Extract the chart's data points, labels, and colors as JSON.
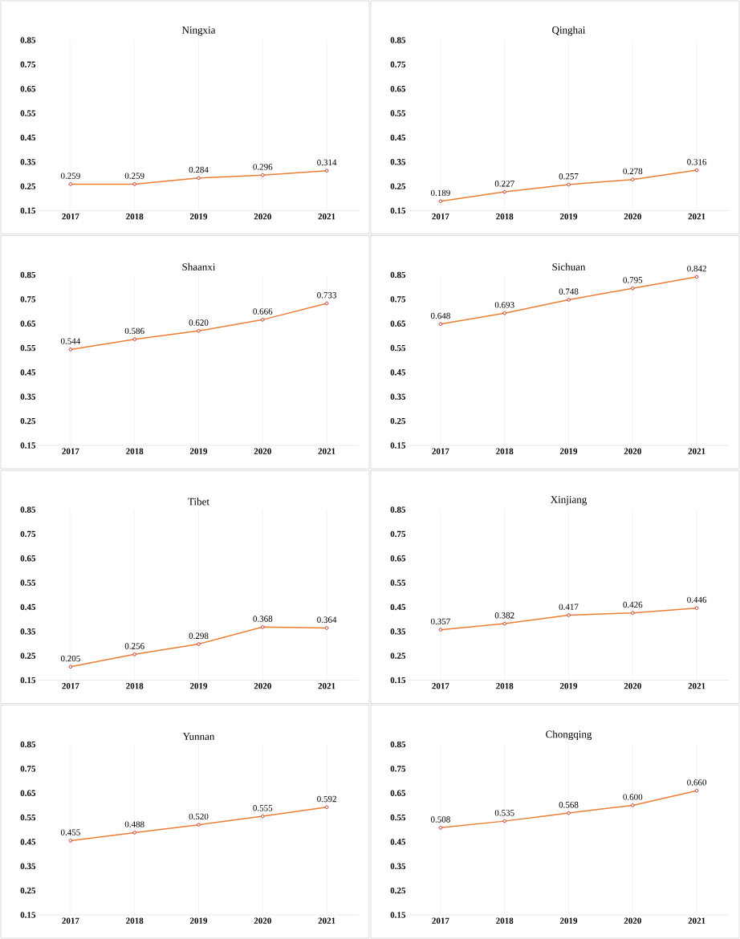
{
  "chart_data": [
    {
      "type": "line",
      "title": "Ningxia",
      "categories": [
        "2017",
        "2018",
        "2019",
        "2020",
        "2021"
      ],
      "values": [
        0.259,
        0.259,
        0.284,
        0.296,
        0.314
      ],
      "value_labels": [
        "0.259",
        "0.259",
        "0.284",
        "0.296",
        "0.314"
      ],
      "color": "#ed7d31",
      "ylim": [
        0.15,
        0.85
      ],
      "yticks": [
        0.15,
        0.25,
        0.35,
        0.45,
        0.55,
        0.65,
        0.75,
        0.85
      ],
      "grid": "x",
      "marker": "circle"
    },
    {
      "type": "line",
      "title": "Qinghai",
      "categories": [
        "2017",
        "2018",
        "2019",
        "2020",
        "2021"
      ],
      "values": [
        0.189,
        0.227,
        0.257,
        0.278,
        0.316
      ],
      "value_labels": [
        "0.189",
        "0.227",
        "0.257",
        "0.278",
        "0.316"
      ],
      "color": "#ed7d31",
      "ylim": [
        0.15,
        0.85
      ],
      "yticks": [
        0.15,
        0.25,
        0.35,
        0.45,
        0.55,
        0.65,
        0.75,
        0.85
      ],
      "grid": "x",
      "marker": "circle"
    },
    {
      "type": "line",
      "title": "Shaanxi",
      "categories": [
        "2017",
        "2018",
        "2019",
        "2020",
        "2021"
      ],
      "values": [
        0.544,
        0.586,
        0.62,
        0.666,
        0.733
      ],
      "value_labels": [
        "0.544",
        "0.586",
        "0.620",
        "0.666",
        "0.733"
      ],
      "color": "#ed7d31",
      "ylim": [
        0.15,
        0.85
      ],
      "yticks": [
        0.15,
        0.25,
        0.35,
        0.45,
        0.55,
        0.65,
        0.75,
        0.85
      ],
      "grid": "x",
      "marker": "circle"
    },
    {
      "type": "line",
      "title": "Sichuan",
      "categories": [
        "2017",
        "2018",
        "2019",
        "2020",
        "2021"
      ],
      "values": [
        0.648,
        0.693,
        0.748,
        0.795,
        0.842
      ],
      "value_labels": [
        "0.648",
        "0.693",
        "0.748",
        "0.795",
        "0.842"
      ],
      "color": "#ed7d31",
      "ylim": [
        0.15,
        0.85
      ],
      "yticks": [
        0.15,
        0.25,
        0.35,
        0.45,
        0.55,
        0.65,
        0.75,
        0.85
      ],
      "grid": "x",
      "marker": "circle"
    },
    {
      "type": "line",
      "title": "Tibet",
      "categories": [
        "2017",
        "2018",
        "2019",
        "2020",
        "2021"
      ],
      "values": [
        0.205,
        0.256,
        0.298,
        0.368,
        0.364
      ],
      "value_labels": [
        "0.205",
        "0.256",
        "0.298",
        "0.368",
        "0.364"
      ],
      "color": "#ed7d31",
      "ylim": [
        0.15,
        0.85
      ],
      "yticks": [
        0.15,
        0.25,
        0.35,
        0.45,
        0.55,
        0.65,
        0.75,
        0.85
      ],
      "grid": "x",
      "marker": "circle"
    },
    {
      "type": "line",
      "title": "Xinjiang",
      "categories": [
        "2017",
        "2018",
        "2019",
        "2020",
        "2021"
      ],
      "values": [
        0.357,
        0.382,
        0.417,
        0.426,
        0.446
      ],
      "value_labels": [
        "0.357",
        "0.382",
        "0.417",
        "0.426",
        "0.446"
      ],
      "color": "#ed7d31",
      "ylim": [
        0.15,
        0.85
      ],
      "yticks": [
        0.15,
        0.25,
        0.35,
        0.45,
        0.55,
        0.65,
        0.75,
        0.85
      ],
      "grid": "x",
      "marker": "circle"
    },
    {
      "type": "line",
      "title": "Yunnan",
      "categories": [
        "2017",
        "2018",
        "2019",
        "2020",
        "2021"
      ],
      "values": [
        0.455,
        0.488,
        0.52,
        0.555,
        0.592
      ],
      "value_labels": [
        "0.455",
        "0.488",
        "0.520",
        "0.555",
        "0.592"
      ],
      "color": "#ed7d31",
      "ylim": [
        0.15,
        0.85
      ],
      "yticks": [
        0.15,
        0.25,
        0.35,
        0.45,
        0.55,
        0.65,
        0.75,
        0.85
      ],
      "grid": "x",
      "marker": "circle"
    },
    {
      "type": "line",
      "title": "Chongqing",
      "categories": [
        "2017",
        "2018",
        "2019",
        "2020",
        "2021"
      ],
      "values": [
        0.508,
        0.535,
        0.568,
        0.6,
        0.66
      ],
      "value_labels": [
        "0.508",
        "0.535",
        "0.568",
        "0.600",
        "0.660"
      ],
      "color": "#ed7d31",
      "ylim": [
        0.15,
        0.85
      ],
      "yticks": [
        0.15,
        0.25,
        0.35,
        0.45,
        0.55,
        0.65,
        0.75,
        0.85
      ],
      "grid": "x",
      "marker": "circle"
    }
  ]
}
